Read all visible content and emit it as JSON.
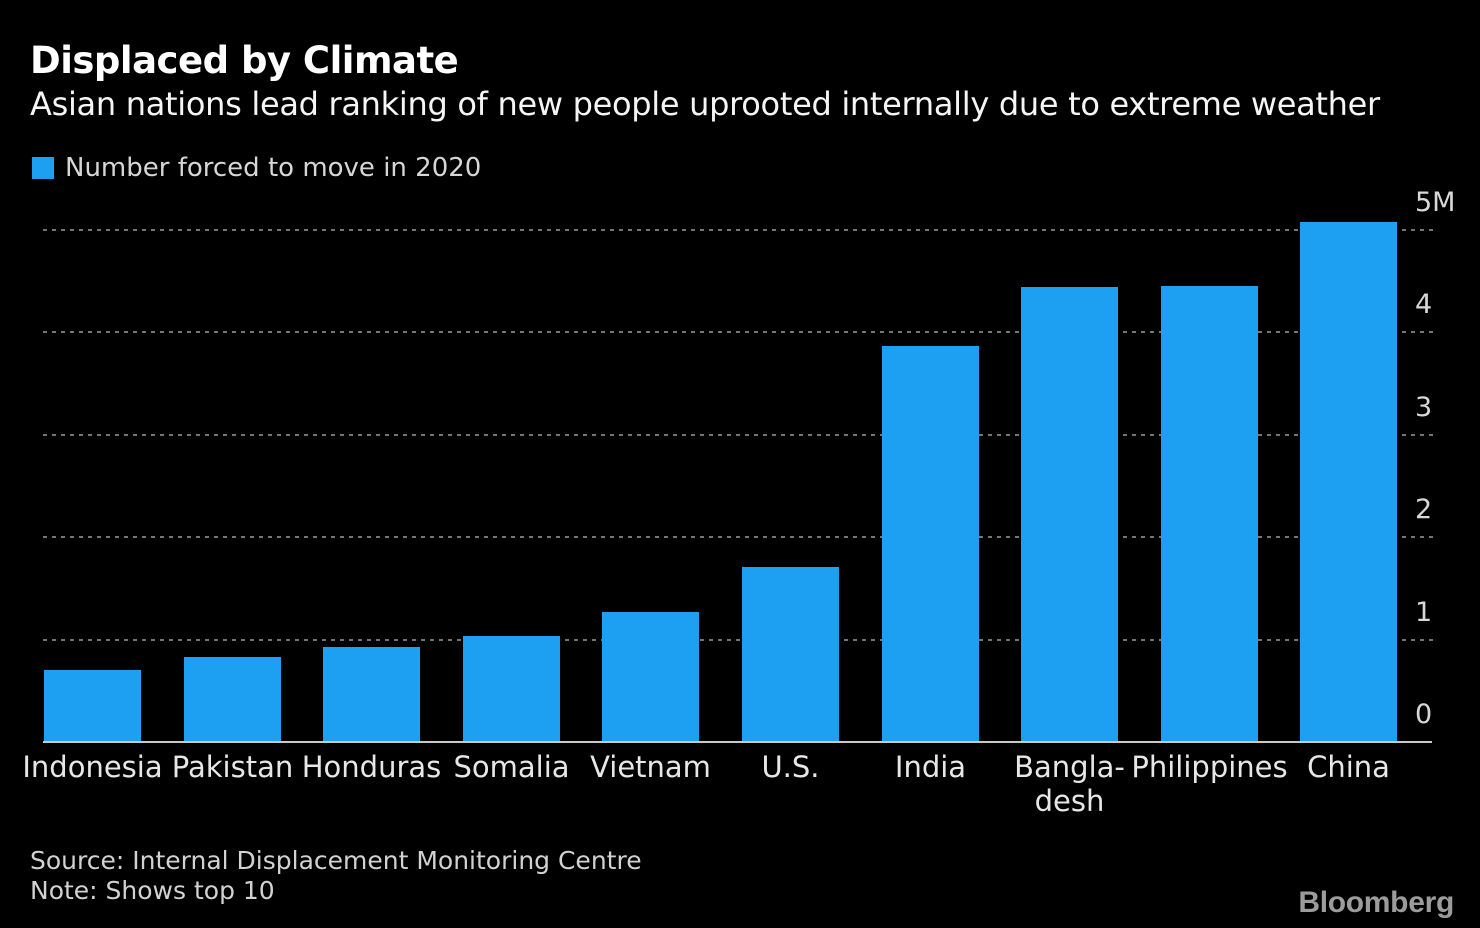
{
  "header": {
    "title": "Displaced by Climate",
    "subtitle": "Asian nations lead ranking of new people uprooted internally due to extreme weather"
  },
  "legend": {
    "label": "Number forced to move in 2020"
  },
  "chart_data": {
    "type": "bar",
    "title": "Displaced by Climate",
    "subtitle": "Asian nations lead ranking of new people uprooted internally due to extreme weather",
    "series_name": "Number forced to move in 2020",
    "unit": "millions of people",
    "categories": [
      "Indonesia",
      "Pakistan",
      "Honduras",
      "Somalia",
      "Vietnam",
      "U.S.",
      "India",
      "Bangla-\ndesh",
      "Philippines",
      "China"
    ],
    "values": [
      0.7,
      0.83,
      0.93,
      1.03,
      1.27,
      1.71,
      3.86,
      4.44,
      4.45,
      5.07
    ],
    "y_ticks": [
      0,
      1,
      2,
      3,
      4,
      5
    ],
    "y_tick_labels": [
      "0",
      "1",
      "2",
      "3",
      "4",
      "5M"
    ],
    "ylim": [
      0,
      5
    ],
    "grid": "dashed-horizontal",
    "legend_position": "top-left",
    "bar_color": "#1ea0f2"
  },
  "footer": {
    "source": "Source: Internal Displacement Monitoring Centre",
    "note": "Note: Shows top 10",
    "brand": "Bloomberg"
  },
  "colors": {
    "background": "#000000",
    "bar": "#1ea0f2",
    "title_text": "#ffffff",
    "subtitle_text": "#f5f5f5",
    "legend_text": "#d6d6d6",
    "y_tick_text": "#d8d8d8",
    "x_tick_text": "#e7e7e7",
    "gridline": "#757575",
    "baseline": "#cdc8c1",
    "source_text": "#d2d2d2",
    "brand_text": "#9c9c9c"
  }
}
